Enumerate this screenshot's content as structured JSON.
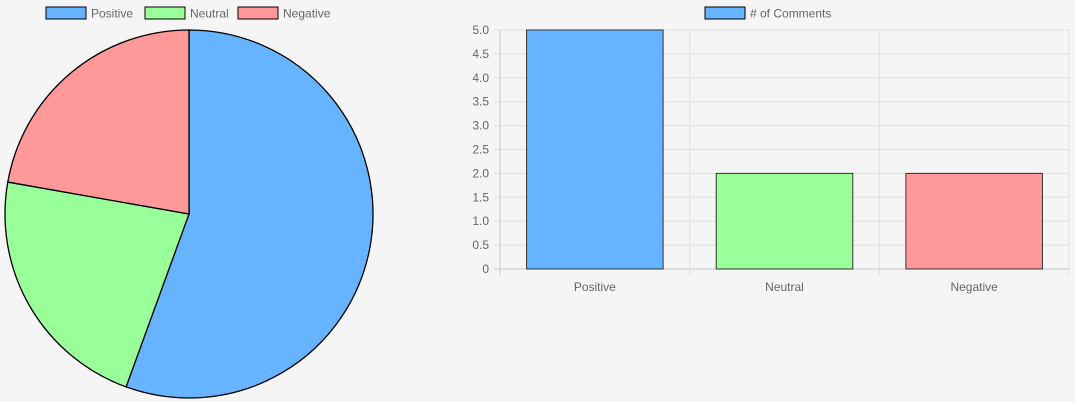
{
  "chart_data": [
    {
      "type": "pie",
      "title": "",
      "categories": [
        "Positive",
        "Neutral",
        "Negative"
      ],
      "values": [
        5,
        2,
        2
      ],
      "colors": [
        "#66b3ff",
        "#99ff99",
        "#ff9999"
      ],
      "border_color": "#000000",
      "legend": "top"
    },
    {
      "type": "bar",
      "title": "",
      "categories": [
        "Positive",
        "Neutral",
        "Negative"
      ],
      "series": [
        {
          "name": "# of Comments",
          "values": [
            5,
            2,
            2
          ],
          "colors": [
            "#66b3ff",
            "#99ff99",
            "#ff9999"
          ]
        }
      ],
      "xlabel": "",
      "ylabel": "",
      "ylim": [
        0,
        5
      ],
      "yticks": [
        "0",
        "0.5",
        "1.0",
        "1.5",
        "2.0",
        "2.5",
        "3.0",
        "3.5",
        "4.0",
        "4.5",
        "5.0"
      ],
      "grid": true,
      "legend": "top"
    }
  ]
}
